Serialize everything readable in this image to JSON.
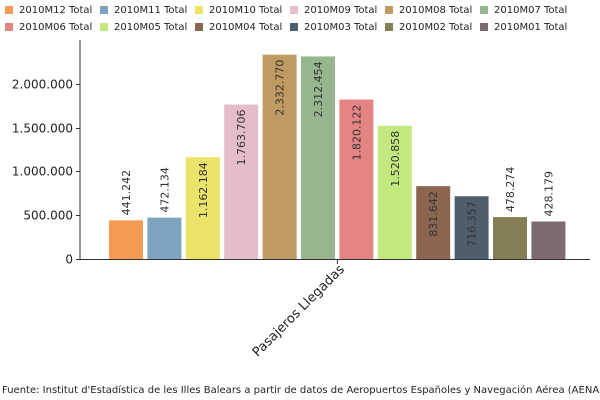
{
  "chart_data": {
    "type": "bar",
    "categories": [
      "Pasajeros Llegadas"
    ],
    "series": [
      {
        "name": "2010M12 Total",
        "color": "#f79a55",
        "values": [
          441242
        ],
        "label": "441.242"
      },
      {
        "name": "2010M11 Total",
        "color": "#7fa4c2",
        "values": [
          472134
        ],
        "label": "472.134"
      },
      {
        "name": "2010M10 Total",
        "color": "#ece36a",
        "values": [
          1162184
        ],
        "label": "1.162.184"
      },
      {
        "name": "2010M09 Total",
        "color": "#e5bccc",
        "values": [
          1763706
        ],
        "label": "1.763.706"
      },
      {
        "name": "2010M08 Total",
        "color": "#c09a62",
        "values": [
          2332770
        ],
        "label": "2.332.770"
      },
      {
        "name": "2010M07 Total",
        "color": "#96b68e",
        "values": [
          2312454
        ],
        "label": "2.312.454"
      },
      {
        "name": "2010M06 Total",
        "color": "#e48584",
        "values": [
          1820122
        ],
        "label": "1.820.122"
      },
      {
        "name": "2010M05 Total",
        "color": "#c2e87e",
        "values": [
          1520858
        ],
        "label": "1.520.858"
      },
      {
        "name": "2010M04 Total",
        "color": "#8c6550",
        "values": [
          831642
        ],
        "label": "831.642"
      },
      {
        "name": "2010M03 Total",
        "color": "#4f5e6b",
        "values": [
          716357
        ],
        "label": "716.357"
      },
      {
        "name": "2010M02 Total",
        "color": "#857e57",
        "values": [
          478274
        ],
        "label": "478.274"
      },
      {
        "name": "2010M01 Total",
        "color": "#7d6a72",
        "values": [
          428179
        ],
        "label": "428.179"
      }
    ],
    "ylim": [
      0,
      2500000
    ],
    "yticks": [
      {
        "value": 0,
        "label": "0"
      },
      {
        "value": 500000,
        "label": "500.000"
      },
      {
        "value": 1000000,
        "label": "1.000.000"
      },
      {
        "value": 1500000,
        "label": "1.500.000"
      },
      {
        "value": 2000000,
        "label": "2.000.000"
      }
    ],
    "legend_position": "top",
    "grid": false
  },
  "footer": {
    "source": "Fuente: Institut d'Estadística de les Illes Balears a partir de datos de Aeropuertos Españoles y Navegación Aérea (AENA)"
  }
}
